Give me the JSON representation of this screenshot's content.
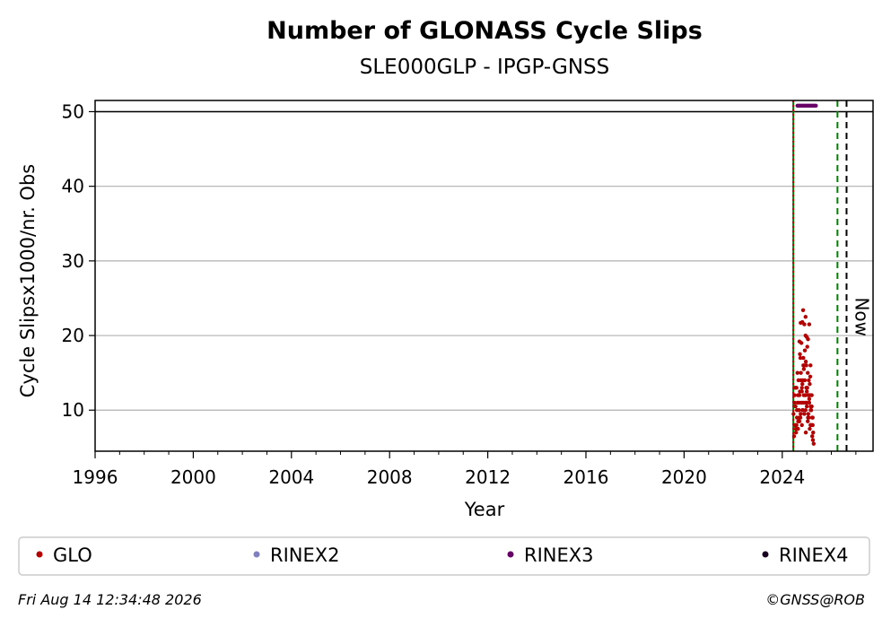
{
  "chart_data": {
    "type": "scatter",
    "title": "Number of GLONASS Cycle Slips",
    "subtitle": "SLE000GLP - IPGP-GNSS",
    "xlabel": "Year",
    "ylabel": "Cycle Slipsx1000/nr. Obs",
    "xlim": [
      1996,
      2027.7
    ],
    "ylim": [
      4.5,
      51.5
    ],
    "x_ticks": [
      "1996",
      "2000",
      "2004",
      "2008",
      "2012",
      "2016",
      "2020",
      "2024"
    ],
    "y_ticks": [
      "10",
      "20",
      "30",
      "40",
      "50"
    ],
    "grid": "horizontal",
    "reference_line_y": 50,
    "vertical_lines": [
      {
        "x": 2024.45,
        "style": "solid",
        "color": "#008000"
      },
      {
        "x": 2024.45,
        "style": "dotted",
        "color": "#cc0000"
      },
      {
        "x": 2026.25,
        "style": "dashed",
        "color": "#008000"
      },
      {
        "x": 2026.62,
        "style": "dashed",
        "color": "#000000"
      }
    ],
    "now_label": "Now",
    "series": [
      {
        "name": "GLO",
        "color": "#b30000",
        "x": [
          2024.46,
          2024.48,
          2024.5,
          2024.52,
          2024.54,
          2024.56,
          2024.58,
          2024.6,
          2024.62,
          2024.64,
          2024.66,
          2024.68,
          2024.7,
          2024.72,
          2024.74,
          2024.76,
          2024.78,
          2024.8,
          2024.82,
          2024.84,
          2024.86,
          2024.88,
          2024.9,
          2024.92,
          2024.94,
          2024.96,
          2024.98,
          2025.0,
          2025.02,
          2025.04,
          2025.06,
          2025.08,
          2025.1,
          2025.12,
          2025.14,
          2025.16,
          2025.18,
          2025.2,
          2025.22,
          2025.24,
          2025.26,
          2025.28,
          2024.5,
          2024.55,
          2024.6,
          2024.65,
          2024.7,
          2024.75,
          2024.8,
          2024.85,
          2024.9,
          2024.95,
          2025.0,
          2025.05,
          2025.1,
          2025.15,
          2025.2,
          2025.25,
          2024.52,
          2024.58,
          2024.64,
          2024.7,
          2024.76,
          2024.82,
          2024.88,
          2024.94,
          2025.0,
          2025.06,
          2025.12,
          2025.18,
          2025.24,
          2024.62,
          2024.68,
          2024.74,
          2024.8,
          2024.86,
          2024.92,
          2024.98,
          2025.04,
          2025.1,
          2025.16,
          2025.22,
          2024.72,
          2024.78,
          2024.84,
          2024.9,
          2024.96,
          2025.02,
          2025.08,
          2025.14,
          2024.75,
          2024.85,
          2024.95,
          2025.05,
          2025.15,
          2024.7,
          2024.95,
          2025.1,
          2024.82,
          2025.0
        ],
        "y": [
          9.5,
          6.5,
          12,
          8,
          10.5,
          7,
          13,
          9,
          11,
          7.5,
          14,
          10,
          8.5,
          12.5,
          9,
          15,
          11,
          8,
          13.5,
          10,
          17,
          12,
          9.5,
          14,
          11,
          7,
          16,
          10.5,
          13,
          8.5,
          12,
          9,
          11.5,
          7.5,
          14.5,
          10,
          8,
          12,
          6.5,
          9,
          7,
          5.5,
          11,
          7.5,
          10,
          8.5,
          12,
          9.5,
          13,
          11,
          16,
          10,
          12.5,
          9,
          11,
          8,
          10.5,
          6,
          13,
          8,
          12,
          9,
          14,
          10,
          15.5,
          12,
          11,
          9.5,
          13.5,
          10,
          8,
          15,
          11,
          17,
          12.5,
          16,
          18,
          13,
          15,
          12,
          10.5,
          9,
          17.5,
          19,
          14,
          21.5,
          16.5,
          18.5,
          14,
          12,
          21.7,
          23.4,
          20,
          19.5,
          16,
          19.2,
          22.5,
          21.5,
          21.8,
          19.8
        ]
      },
      {
        "name": "RINEX2",
        "color": "#8080c0",
        "x": [],
        "y": []
      },
      {
        "name": "RINEX3",
        "color": "#660066",
        "x": [
          2024.62,
          2024.67,
          2024.72,
          2024.77,
          2024.82,
          2024.87,
          2024.92,
          2024.97,
          2025.02,
          2025.07,
          2025.12,
          2025.17,
          2025.22,
          2025.27,
          2025.32,
          2025.37
        ],
        "y": [
          50.8,
          50.8,
          50.8,
          50.8,
          50.8,
          50.8,
          50.8,
          50.8,
          50.8,
          50.8,
          50.8,
          50.8,
          50.8,
          50.8,
          50.8,
          50.8
        ]
      },
      {
        "name": "RINEX4",
        "color": "#1a0020",
        "x": [],
        "y": []
      }
    ],
    "legend": {
      "placement": "bottom",
      "entries": [
        "GLO",
        "RINEX2",
        "RINEX3",
        "RINEX4"
      ]
    }
  },
  "footer": {
    "timestamp": "Fri Aug 14 12:34:48 2026",
    "copyright": "©GNSS@ROB"
  }
}
